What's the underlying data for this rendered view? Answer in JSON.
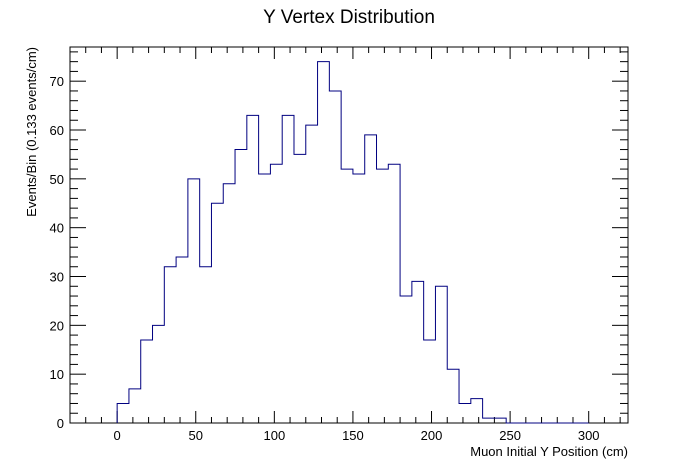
{
  "chart_data": {
    "type": "bar",
    "title": "Y Vertex Distribution",
    "xlabel": "Muon Initial Y Position (cm)",
    "ylabel": "Events/Bin (0.133 events/cm)",
    "xlim": [
      -30,
      325
    ],
    "ylim": [
      0,
      77
    ],
    "x_ticks": [
      0,
      50,
      100,
      150,
      200,
      250,
      300
    ],
    "y_ticks": [
      0,
      10,
      20,
      30,
      40,
      50,
      60,
      70
    ],
    "bin_width": 7.5,
    "bin_start": 0,
    "values": [
      4,
      7,
      17,
      20,
      32,
      34,
      50,
      32,
      45,
      49,
      56,
      63,
      51,
      53,
      63,
      55,
      61,
      74,
      68,
      52,
      51,
      59,
      52,
      53,
      26,
      29,
      17,
      28,
      11,
      4,
      5,
      1,
      1,
      0,
      0,
      0,
      0,
      0,
      0,
      0
    ],
    "line_color": "#000080",
    "grid": false,
    "legend": "none"
  }
}
